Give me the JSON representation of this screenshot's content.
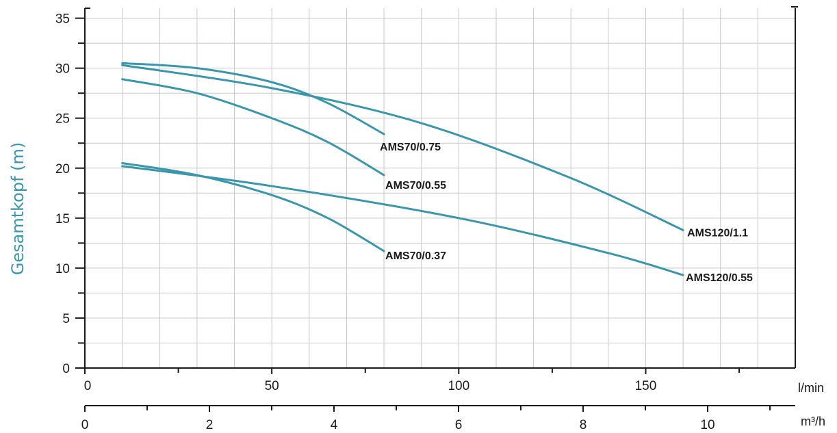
{
  "chart_data": {
    "type": "line",
    "title": "",
    "ylabel": "Gesamtkopf (m)",
    "xlabel": "l/min",
    "x2label": "m³/h",
    "ylim": [
      0,
      36
    ],
    "xlim": [
      0,
      190
    ],
    "yticks": [
      "0",
      "5",
      "10",
      "15",
      "20",
      "25",
      "30",
      "35"
    ],
    "xticks": [
      "0",
      "50",
      "100",
      "150"
    ],
    "x2ticks": [
      "0",
      "2",
      "4",
      "6",
      "8",
      "10"
    ],
    "grid": true,
    "colors": {
      "curve": "#3a96aa",
      "axis": "#1a1a1a",
      "grid": "#c8c8c8",
      "ylabel": "#3a96aa"
    },
    "series": [
      {
        "name": "AMS70/0.75",
        "x": [
          10,
          30,
          50,
          65,
          80
        ],
        "y": [
          30.5,
          30.0,
          28.6,
          26.5,
          23.4
        ]
      },
      {
        "name": "AMS70/0.55",
        "x": [
          10,
          30,
          50,
          65,
          80
        ],
        "y": [
          28.9,
          27.5,
          25.0,
          22.6,
          19.3
        ]
      },
      {
        "name": "AMS70/0.37",
        "x": [
          10,
          30,
          50,
          65,
          80
        ],
        "y": [
          20.5,
          19.3,
          17.3,
          15.0,
          11.7
        ]
      },
      {
        "name": "AMS120/1.1",
        "x": [
          10,
          50,
          90,
          130,
          160
        ],
        "y": [
          30.3,
          28.0,
          24.5,
          19.0,
          13.8
        ]
      },
      {
        "name": "AMS120/0.55",
        "x": [
          10,
          50,
          100,
          140,
          160
        ],
        "y": [
          20.2,
          18.2,
          15.0,
          11.5,
          9.3
        ]
      }
    ]
  }
}
